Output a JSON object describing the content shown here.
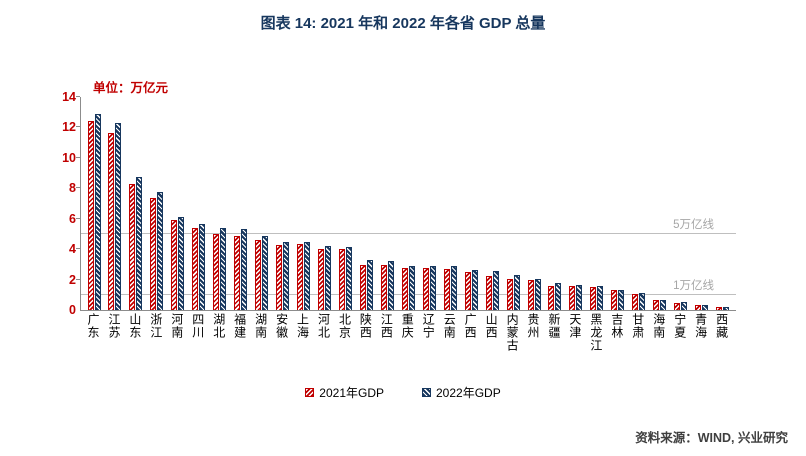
{
  "header": {
    "title": "图表 14: 2021 年和 2022 年各省 GDP 总量"
  },
  "unit_label": "单位：万亿元",
  "footer": {
    "source": "资料来源：WIND, 兴业研究"
  },
  "colors": {
    "title": "#17375E",
    "series_2021": "#C00000",
    "series_2022": "#17375E",
    "axis_text": "#C00000",
    "ref_line": "#BFBFBF",
    "ref_label": "#A6A6A6"
  },
  "chart_data": {
    "type": "bar",
    "title": "图表 14: 2021 年和 2022 年各省 GDP 总量",
    "xlabel": "",
    "ylabel": "万亿元",
    "ylim": [
      0,
      14
    ],
    "yticks": [
      0,
      2,
      4,
      6,
      8,
      10,
      12,
      14
    ],
    "grid": "off",
    "legend_position": "bottom",
    "categories": [
      "广东",
      "江苏",
      "山东",
      "浙江",
      "河南",
      "四川",
      "湖北",
      "福建",
      "湖南",
      "安徽",
      "上海",
      "河北",
      "北京",
      "陕西",
      "江西",
      "重庆",
      "辽宁",
      "云南",
      "广西",
      "山西",
      "内蒙古",
      "贵州",
      "新疆",
      "天津",
      "黑龙江",
      "吉林",
      "甘肃",
      "海南",
      "宁夏",
      "青海",
      "西藏"
    ],
    "series": [
      {
        "name": "2021年GDP",
        "values": [
          12.44,
          11.64,
          8.31,
          7.35,
          5.89,
          5.38,
          5.0,
          4.88,
          4.61,
          4.3,
          4.32,
          4.04,
          4.03,
          2.98,
          2.97,
          2.79,
          2.76,
          2.72,
          2.47,
          2.26,
          2.05,
          1.96,
          1.6,
          1.57,
          1.49,
          1.32,
          1.02,
          0.65,
          0.45,
          0.33,
          0.21
        ]
      },
      {
        "name": "2022年GDP",
        "values": [
          12.91,
          12.29,
          8.74,
          7.77,
          6.13,
          5.67,
          5.37,
          5.31,
          4.87,
          4.5,
          4.47,
          4.24,
          4.16,
          3.27,
          3.21,
          2.91,
          2.9,
          2.89,
          2.63,
          2.56,
          2.32,
          2.02,
          1.77,
          1.63,
          1.59,
          1.31,
          1.12,
          0.68,
          0.51,
          0.36,
          0.21
        ]
      }
    ],
    "ref_lines": [
      {
        "value": 5,
        "label": "5万亿线"
      },
      {
        "value": 1,
        "label": "1万亿线"
      }
    ]
  }
}
